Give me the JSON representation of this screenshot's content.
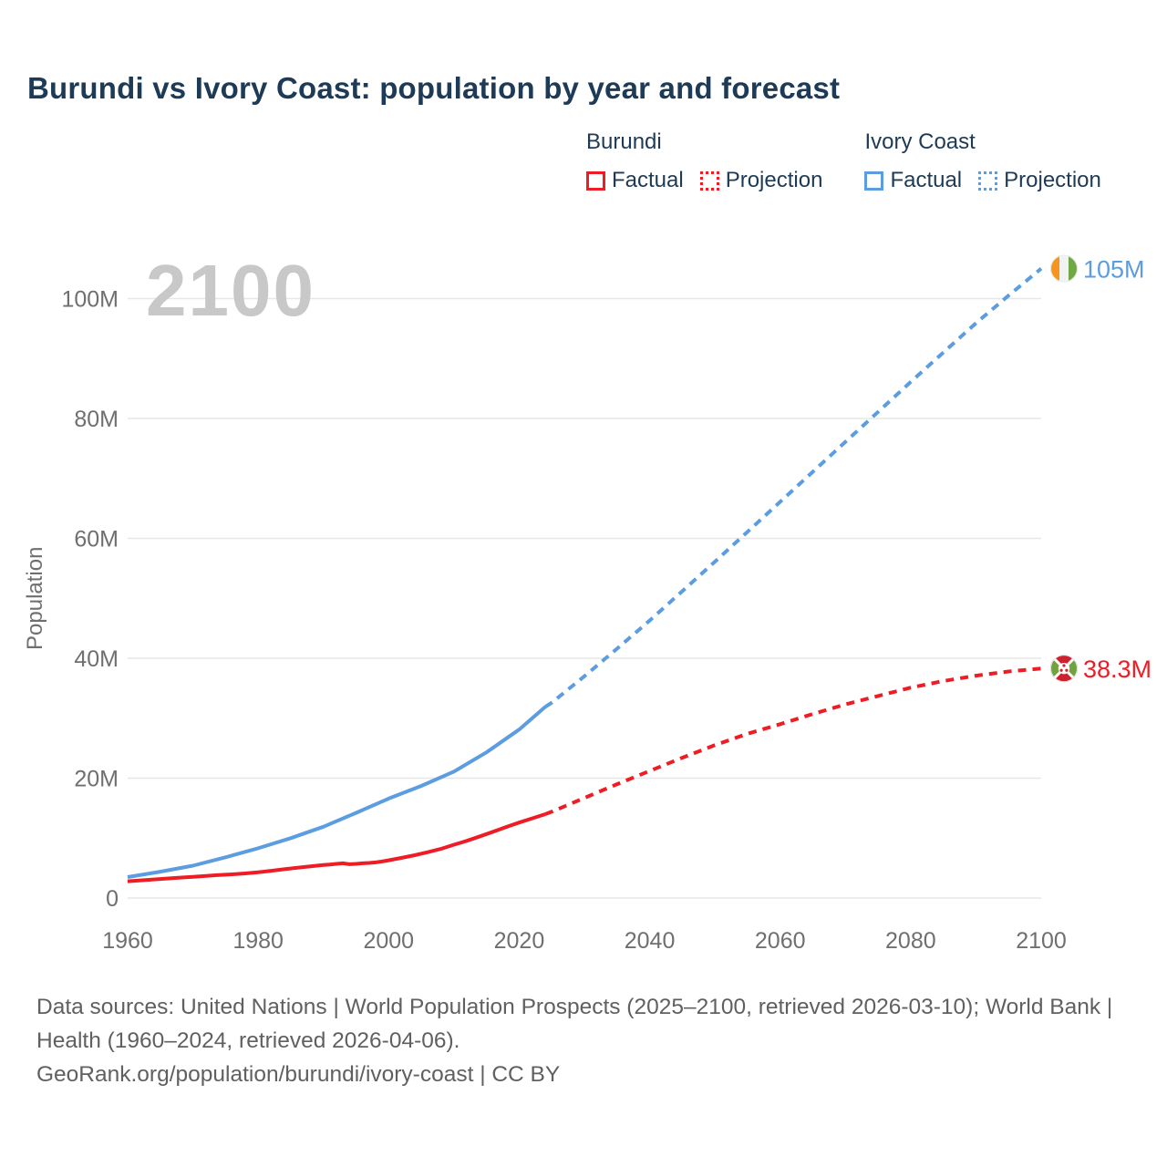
{
  "title": "Burundi vs Ivory Coast: population by year and forecast",
  "legend": {
    "groups": [
      {
        "name": "Burundi",
        "color": "#ee1c25",
        "items": [
          {
            "label": "Factual",
            "style": "solid"
          },
          {
            "label": "Projection",
            "style": "dotted"
          }
        ]
      },
      {
        "name": "Ivory Coast",
        "color": "#5b9de0",
        "items": [
          {
            "label": "Factual",
            "style": "solid"
          },
          {
            "label": "Projection",
            "style": "dotted"
          }
        ]
      }
    ]
  },
  "chart_data": {
    "type": "line",
    "watermark": "2100",
    "ylabel": "Population",
    "xlabel": "",
    "xlim": [
      1960,
      2100
    ],
    "ylim": [
      0,
      110
    ],
    "unit": "millions of people",
    "grid": "horizontal",
    "legend_position": "top-right",
    "x_ticks": [
      1960,
      1980,
      2000,
      2020,
      2040,
      2060,
      2080,
      2100
    ],
    "y_ticks": [
      {
        "v": 0,
        "label": "0"
      },
      {
        "v": 20,
        "label": "20M"
      },
      {
        "v": 40,
        "label": "40M"
      },
      {
        "v": 60,
        "label": "60M"
      },
      {
        "v": 80,
        "label": "80M"
      },
      {
        "v": 100,
        "label": "100M"
      }
    ],
    "series": [
      {
        "id": "ivory-coast-factual",
        "country": "Ivory Coast",
        "kind": "Factual",
        "color": "#5b9de0",
        "dash": false,
        "points": [
          [
            1960,
            3.5
          ],
          [
            1965,
            4.4
          ],
          [
            1970,
            5.4
          ],
          [
            1975,
            6.8
          ],
          [
            1980,
            8.3
          ],
          [
            1985,
            10.0
          ],
          [
            1990,
            11.9
          ],
          [
            1995,
            14.2
          ],
          [
            2000,
            16.6
          ],
          [
            2005,
            18.7
          ],
          [
            2010,
            21.1
          ],
          [
            2015,
            24.3
          ],
          [
            2020,
            28.1
          ],
          [
            2024,
            31.9
          ]
        ]
      },
      {
        "id": "ivory-coast-projection",
        "country": "Ivory Coast",
        "kind": "Projection",
        "color": "#5b9de0",
        "dash": true,
        "end_label": "105M",
        "flag": "ivory-coast",
        "points": [
          [
            2024,
            31.9
          ],
          [
            2025,
            32.6
          ],
          [
            2030,
            37.0
          ],
          [
            2035,
            41.6
          ],
          [
            2040,
            46.3
          ],
          [
            2045,
            51.2
          ],
          [
            2050,
            56.1
          ],
          [
            2055,
            61.1
          ],
          [
            2060,
            66.1
          ],
          [
            2065,
            71.1
          ],
          [
            2070,
            76.1
          ],
          [
            2075,
            81.1
          ],
          [
            2080,
            86.1
          ],
          [
            2085,
            91.0
          ],
          [
            2090,
            95.9
          ],
          [
            2095,
            100.5
          ],
          [
            2100,
            105.0
          ]
        ]
      },
      {
        "id": "burundi-factual",
        "country": "Burundi",
        "kind": "Factual",
        "color": "#ee1c25",
        "dash": false,
        "points": [
          [
            1960,
            2.8
          ],
          [
            1962,
            2.95
          ],
          [
            1964,
            3.1
          ],
          [
            1966,
            3.25
          ],
          [
            1968,
            3.4
          ],
          [
            1970,
            3.55
          ],
          [
            1972,
            3.7
          ],
          [
            1974,
            3.85
          ],
          [
            1976,
            3.95
          ],
          [
            1978,
            4.1
          ],
          [
            1980,
            4.3
          ],
          [
            1982,
            4.55
          ],
          [
            1984,
            4.8
          ],
          [
            1986,
            5.05
          ],
          [
            1988,
            5.3
          ],
          [
            1990,
            5.5
          ],
          [
            1991,
            5.6
          ],
          [
            1992,
            5.7
          ],
          [
            1993,
            5.8
          ],
          [
            1994,
            5.65
          ],
          [
            1995,
            5.7
          ],
          [
            1996,
            5.8
          ],
          [
            1997,
            5.85
          ],
          [
            1998,
            5.95
          ],
          [
            1999,
            6.1
          ],
          [
            2000,
            6.3
          ],
          [
            2002,
            6.7
          ],
          [
            2004,
            7.15
          ],
          [
            2006,
            7.65
          ],
          [
            2008,
            8.2
          ],
          [
            2010,
            8.9
          ],
          [
            2012,
            9.55
          ],
          [
            2014,
            10.3
          ],
          [
            2016,
            11.05
          ],
          [
            2018,
            11.85
          ],
          [
            2020,
            12.6
          ],
          [
            2022,
            13.3
          ],
          [
            2024,
            14.0
          ]
        ]
      },
      {
        "id": "burundi-projection",
        "country": "Burundi",
        "kind": "Projection",
        "color": "#ee1c25",
        "dash": true,
        "end_label": "38.3M",
        "flag": "burundi",
        "points": [
          [
            2024,
            14.0
          ],
          [
            2025,
            14.4
          ],
          [
            2030,
            16.7
          ],
          [
            2035,
            19.0
          ],
          [
            2040,
            21.2
          ],
          [
            2045,
            23.4
          ],
          [
            2050,
            25.5
          ],
          [
            2055,
            27.4
          ],
          [
            2060,
            29.0
          ],
          [
            2065,
            30.7
          ],
          [
            2070,
            32.3
          ],
          [
            2075,
            33.7
          ],
          [
            2080,
            35.1
          ],
          [
            2085,
            36.2
          ],
          [
            2090,
            37.1
          ],
          [
            2095,
            37.8
          ],
          [
            2100,
            38.3
          ]
        ]
      }
    ]
  },
  "flag_colors": {
    "ivory_coast": {
      "orange": "#f7941e",
      "white": "#f2f2f2",
      "green": "#6fa845"
    },
    "burundi": {
      "red": "#ce2130",
      "green": "#70a23e",
      "white": "#ffffff"
    }
  },
  "footer": {
    "sources": "Data sources: United Nations | World Population Prospects (2025–2100, retrieved 2026-03-10); World Bank | Health (1960–2024, retrieved 2026-04-06).",
    "attribution": "GeoRank.org/population/burundi/ivory-coast | CC BY"
  }
}
